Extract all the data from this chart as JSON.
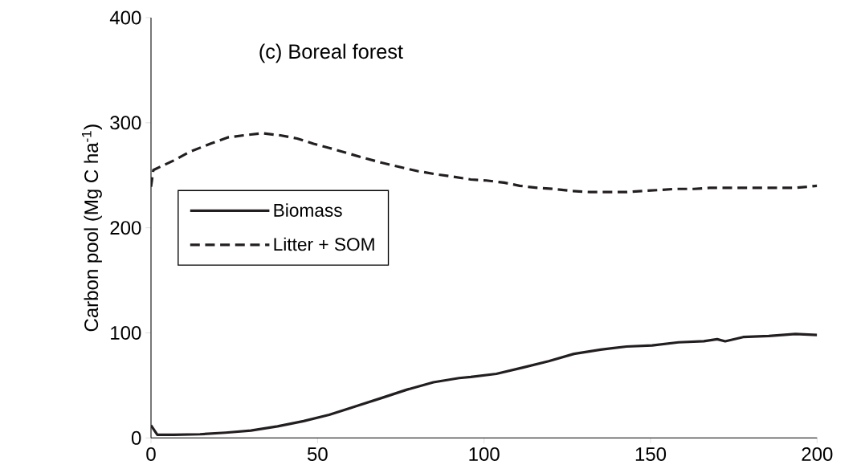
{
  "chart_data": {
    "type": "line",
    "title": "(c) Boreal forest",
    "ylabel": "Carbon pool (Mg C ha$^{-1}$)",
    "xlim": [
      0,
      200
    ],
    "xticks": [
      0,
      50,
      100,
      150,
      200
    ],
    "ylim": [
      0,
      400
    ],
    "yticks": [
      0,
      100,
      200,
      300,
      400
    ],
    "grid": false,
    "legend": "left",
    "series": [
      {
        "name": "Biomass",
        "color": "#231f20",
        "line_style": "solid",
        "x": [
          0,
          1.9,
          6.8,
          14.7,
          22.4,
          30,
          38,
          45.8,
          53.5,
          61.4,
          69.2,
          76.9,
          84.8,
          92.5,
          96,
          103.7,
          111.7,
          119.4,
          127,
          135,
          142.8,
          150.5,
          158.4,
          166,
          170,
          172.4,
          177.8,
          185.5,
          193.5,
          200
        ],
        "values": [
          12,
          3,
          3,
          3.5,
          5,
          7,
          11,
          16,
          22,
          30,
          38,
          46,
          53,
          57,
          58,
          61,
          67,
          73,
          80,
          84,
          87,
          88,
          91,
          92,
          94,
          92,
          96,
          97,
          99,
          98
        ]
      },
      {
        "name": "Litter + SOM",
        "color": "#231f20",
        "line_style": "dashed",
        "x": [
          0,
          0.7,
          6.8,
          11.4,
          17.8,
          23,
          27.8,
          33.4,
          38.8,
          43.9,
          48.8,
          53.5,
          59,
          64.5,
          69.2,
          74.5,
          80,
          85.5,
          90,
          96,
          100.7,
          106,
          110.7,
          116,
          121,
          126.4,
          131.8,
          137,
          142.8,
          147.4,
          152.8,
          157.5,
          163,
          167.8,
          172.7,
          177.8,
          183,
          188.8,
          193.5,
          200
        ],
        "values": [
          239,
          255,
          264,
          272,
          280,
          286,
          288,
          290,
          288,
          285,
          280,
          276,
          271,
          266,
          262,
          258,
          254,
          251,
          249,
          246,
          245,
          243,
          240,
          238,
          237,
          235,
          234,
          234,
          234,
          235,
          236,
          237,
          237,
          238,
          238,
          238,
          238,
          238,
          238,
          240
        ]
      }
    ]
  }
}
